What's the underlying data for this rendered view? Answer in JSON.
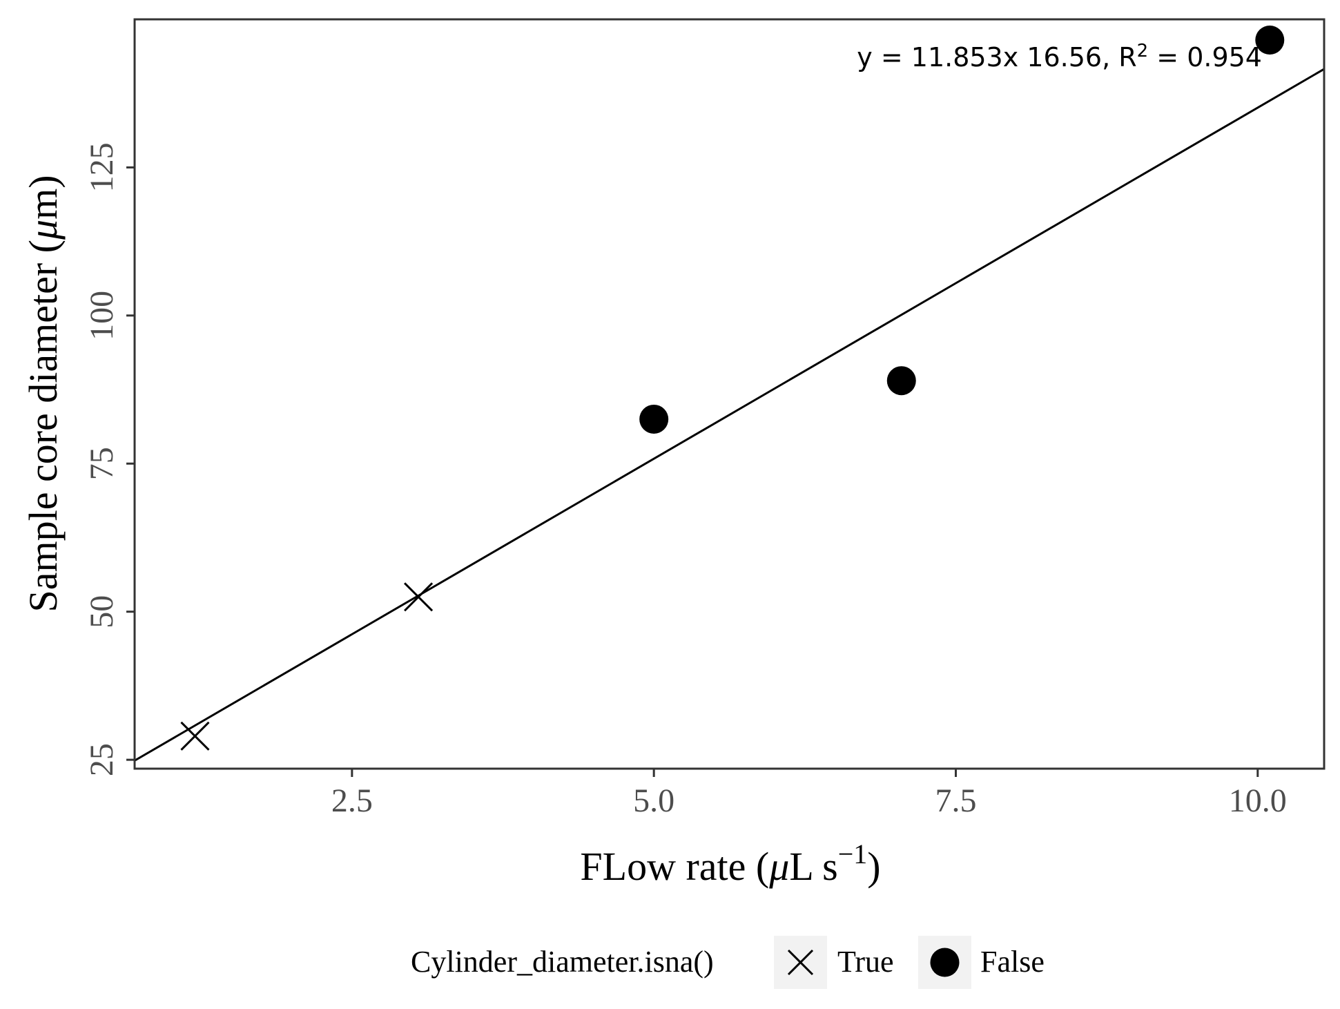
{
  "chart_data": {
    "type": "scatter",
    "xlabel": {
      "main": "FLow rate (",
      "mu": "μ",
      "unit": "L s",
      "sup": "−1",
      "close": ")"
    },
    "ylabel": {
      "main": "Sample core diameter (",
      "mu": "μ",
      "unit": "m)"
    },
    "xlim": [
      0.7,
      10.55
    ],
    "ylim": [
      23.5,
      150.0
    ],
    "xticks": [
      2.5,
      5.0,
      7.5,
      10.0
    ],
    "xtick_labels": [
      "2.5",
      "5.0",
      "7.5",
      "10.0"
    ],
    "yticks": [
      25,
      50,
      75,
      100,
      125
    ],
    "ytick_labels": [
      "25",
      "50",
      "75",
      "100",
      "125"
    ],
    "grid": false,
    "series": [
      {
        "name": "True",
        "marker": "x",
        "points": [
          {
            "x": 1.2,
            "y": 29.0
          },
          {
            "x": 3.05,
            "y": 52.5
          }
        ]
      },
      {
        "name": "False",
        "marker": "circle",
        "points": [
          {
            "x": 5.0,
            "y": 82.5
          },
          {
            "x": 7.05,
            "y": 89.0
          },
          {
            "x": 10.1,
            "y": 146.5
          }
        ]
      }
    ],
    "fit_line": {
      "slope": 11.853,
      "intercept": 16.56
    },
    "annotation": {
      "pre": "y = 11.853x 16.56, R",
      "sup": "2",
      "post": " = 0.954"
    },
    "legend": {
      "title": "Cylinder_diameter.isna()",
      "position": "bottom",
      "items": [
        "True",
        "False"
      ]
    },
    "colors": {
      "marks": "#000000",
      "frame": "#333333",
      "tick_text": "#4d4d4d",
      "legend_key_bg": "#f2f2f2"
    }
  }
}
